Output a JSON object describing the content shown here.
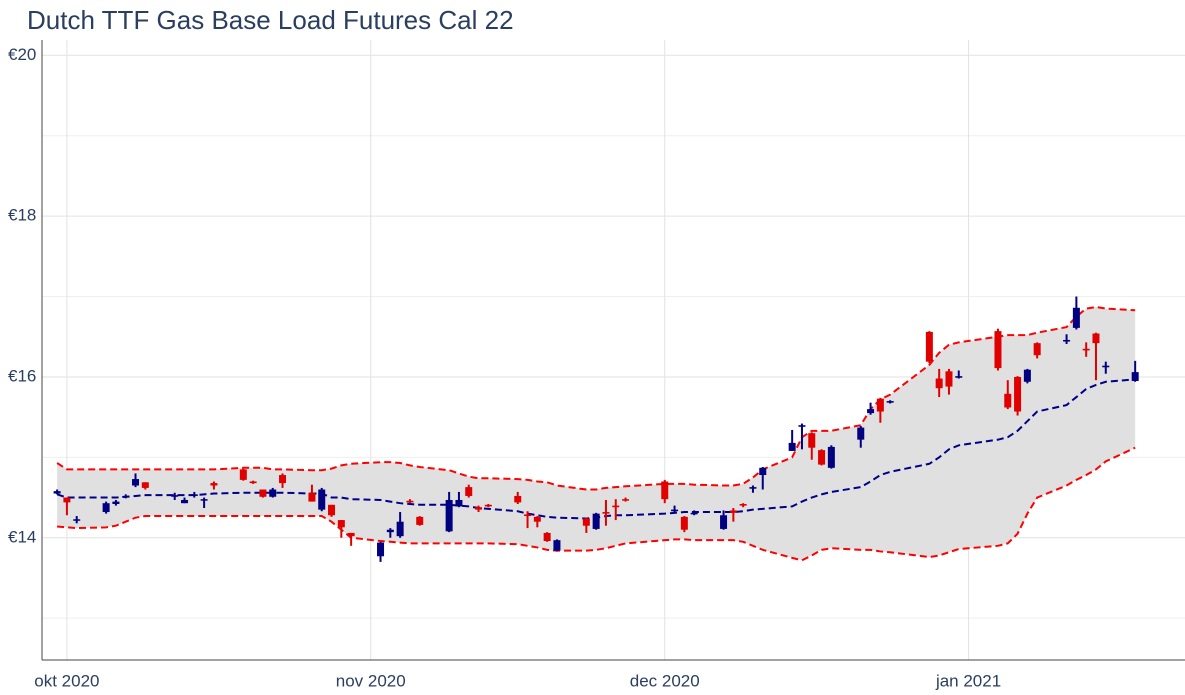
{
  "chart_data": {
    "type": "candlestick",
    "title": "Dutch TTF Gas Base Load Futures Cal 22",
    "x": [
      "2020-09-30",
      "2020-10-01",
      "2020-10-02",
      "2020-10-05",
      "2020-10-06",
      "2020-10-07",
      "2020-10-08",
      "2020-10-09",
      "2020-10-12",
      "2020-10-13",
      "2020-10-14",
      "2020-10-15",
      "2020-10-16",
      "2020-10-19",
      "2020-10-20",
      "2020-10-21",
      "2020-10-22",
      "2020-10-23",
      "2020-10-26",
      "2020-10-27",
      "2020-10-28",
      "2020-10-29",
      "2020-10-30",
      "2020-11-02",
      "2020-11-03",
      "2020-11-04",
      "2020-11-05",
      "2020-11-06",
      "2020-11-09",
      "2020-11-10",
      "2020-11-11",
      "2020-11-12",
      "2020-11-13",
      "2020-11-16",
      "2020-11-17",
      "2020-11-18",
      "2020-11-19",
      "2020-11-20",
      "2020-11-23",
      "2020-11-24",
      "2020-11-25",
      "2020-11-26",
      "2020-11-27",
      "2020-12-01",
      "2020-12-02",
      "2020-12-03",
      "2020-12-04",
      "2020-12-07",
      "2020-12-08",
      "2020-12-09",
      "2020-12-10",
      "2020-12-11",
      "2020-12-14",
      "2020-12-15",
      "2020-12-16",
      "2020-12-17",
      "2020-12-18",
      "2020-12-21",
      "2020-12-22",
      "2020-12-23",
      "2020-12-24",
      "2020-12-28",
      "2020-12-29",
      "2020-12-30",
      "2020-12-31",
      "2021-01-04",
      "2021-01-05",
      "2021-01-06",
      "2021-01-07",
      "2021-01-08",
      "2021-01-11",
      "2021-01-12",
      "2021-01-13",
      "2021-01-14",
      "2021-01-15",
      "2021-01-18"
    ],
    "open": [
      14.55,
      14.5,
      14.22,
      14.32,
      14.42,
      14.5,
      14.65,
      14.69,
      14.51,
      14.43,
      14.52,
      14.47,
      14.68,
      14.85,
      14.7,
      14.6,
      14.51,
      14.78,
      14.56,
      14.35,
      14.41,
      14.22,
      14.06,
      13.77,
      14.07,
      14.02,
      14.46,
      14.26,
      14.08,
      14.39,
      14.63,
      14.38,
      14.41,
      14.52,
      14.29,
      14.26,
      14.06,
      13.84,
      14.24,
      14.11,
      14.32,
      14.4,
      14.48,
      14.7,
      14.33,
      14.26,
      14.3,
      14.11,
      14.34,
      14.42,
      14.61,
      14.78,
      15.08,
      15.38,
      15.3,
      15.09,
      14.87,
      15.22,
      15.55,
      15.73,
      15.68,
      16.56,
      15.98,
      16.07,
      15.99,
      16.57,
      15.79,
      16.0,
      15.94,
      16.42,
      16.44,
      16.61,
      16.35,
      16.54,
      16.12,
      15.95
    ],
    "high": [
      14.6,
      14.5,
      14.27,
      14.45,
      14.47,
      14.54,
      14.8,
      14.69,
      14.56,
      14.5,
      14.57,
      14.5,
      14.7,
      14.86,
      14.71,
      14.6,
      14.62,
      14.8,
      14.66,
      14.62,
      14.41,
      14.22,
      14.06,
      13.95,
      14.12,
      14.32,
      14.48,
      14.27,
      14.57,
      14.57,
      14.66,
      14.4,
      14.42,
      14.57,
      14.33,
      14.27,
      14.07,
      13.98,
      14.25,
      14.31,
      14.47,
      14.48,
      14.5,
      14.72,
      14.4,
      14.27,
      14.34,
      14.34,
      14.37,
      14.43,
      14.65,
      14.88,
      15.34,
      15.42,
      15.31,
      15.1,
      15.15,
      15.39,
      15.68,
      15.74,
      15.71,
      16.57,
      16.1,
      16.1,
      16.08,
      16.6,
      15.96,
      16.01,
      16.1,
      16.43,
      16.53,
      17.0,
      16.43,
      16.55,
      16.19,
      16.2
    ],
    "low": [
      14.54,
      14.28,
      14.18,
      14.3,
      14.4,
      14.49,
      14.63,
      14.6,
      14.47,
      14.43,
      14.5,
      14.37,
      14.6,
      14.71,
      14.67,
      14.5,
      14.5,
      14.62,
      14.45,
      14.33,
      14.26,
      14.0,
      13.9,
      13.7,
      14.0,
      14.0,
      14.43,
      14.15,
      14.07,
      14.38,
      14.5,
      14.32,
      14.38,
      14.42,
      14.12,
      14.13,
      13.95,
      13.83,
      14.06,
      14.1,
      14.15,
      14.22,
      14.45,
      14.43,
      14.32,
      14.07,
      14.28,
      14.1,
      14.2,
      14.38,
      14.56,
      14.6,
      15.08,
      15.1,
      14.97,
      14.9,
      14.86,
      15.12,
      15.53,
      15.43,
      15.67,
      16.17,
      15.75,
      15.78,
      15.98,
      16.08,
      15.6,
      15.52,
      15.92,
      16.23,
      16.41,
      16.59,
      16.25,
      15.96,
      16.04,
      15.94
    ],
    "close": [
      14.58,
      14.44,
      14.23,
      14.43,
      14.45,
      14.52,
      14.73,
      14.62,
      14.53,
      14.47,
      14.54,
      14.48,
      14.65,
      14.72,
      14.68,
      14.51,
      14.6,
      14.68,
      14.45,
      14.6,
      14.28,
      14.13,
      14.02,
      13.94,
      14.1,
      14.2,
      14.44,
      14.16,
      14.47,
      14.47,
      14.52,
      14.35,
      14.39,
      14.44,
      14.27,
      14.2,
      13.96,
      13.97,
      14.15,
      14.3,
      14.3,
      14.38,
      14.47,
      14.48,
      14.35,
      14.1,
      14.31,
      14.28,
      14.31,
      14.4,
      14.63,
      14.87,
      15.18,
      15.4,
      15.12,
      14.91,
      15.13,
      15.37,
      15.6,
      15.57,
      15.7,
      16.19,
      15.86,
      15.88,
      16.01,
      16.11,
      15.62,
      15.57,
      16.09,
      16.27,
      16.46,
      16.86,
      16.33,
      16.42,
      16.14,
      16.06
    ],
    "increasing_color": "#000080",
    "decreasing_color": "#e00000",
    "bands": {
      "upper": [
        14.93,
        14.85,
        14.85,
        14.85,
        14.85,
        14.85,
        14.85,
        14.85,
        14.85,
        14.85,
        14.85,
        14.85,
        14.85,
        14.87,
        14.87,
        14.87,
        14.85,
        14.85,
        14.84,
        14.84,
        14.86,
        14.9,
        14.92,
        14.94,
        14.94,
        14.93,
        14.9,
        14.88,
        14.84,
        14.8,
        14.76,
        14.74,
        14.74,
        14.73,
        14.72,
        14.7,
        14.69,
        14.65,
        14.6,
        14.6,
        14.62,
        14.63,
        14.64,
        14.67,
        14.67,
        14.67,
        14.66,
        14.65,
        14.65,
        14.67,
        14.75,
        14.85,
        15.0,
        15.25,
        15.33,
        15.33,
        15.33,
        15.4,
        15.6,
        15.72,
        15.78,
        16.15,
        16.3,
        16.4,
        16.43,
        16.5,
        16.52,
        16.52,
        16.52,
        16.55,
        16.62,
        16.75,
        16.85,
        16.87,
        16.85,
        16.83
      ],
      "middle": [
        14.54,
        14.5,
        14.5,
        14.5,
        14.5,
        14.51,
        14.52,
        14.53,
        14.53,
        14.53,
        14.53,
        14.54,
        14.55,
        14.56,
        14.56,
        14.56,
        14.56,
        14.56,
        14.55,
        14.55,
        14.5,
        14.5,
        14.48,
        14.47,
        14.45,
        14.43,
        14.42,
        14.41,
        14.41,
        14.4,
        14.39,
        14.37,
        14.36,
        14.33,
        14.3,
        14.28,
        14.26,
        14.25,
        14.24,
        14.25,
        14.27,
        14.28,
        14.28,
        14.3,
        14.31,
        14.32,
        14.32,
        14.32,
        14.32,
        14.33,
        14.35,
        14.36,
        14.39,
        14.45,
        14.5,
        14.54,
        14.57,
        14.63,
        14.7,
        14.78,
        14.82,
        14.92,
        15.0,
        15.1,
        15.15,
        15.22,
        15.25,
        15.33,
        15.45,
        15.57,
        15.65,
        15.75,
        15.85,
        15.9,
        15.94,
        15.97
      ],
      "lower": [
        14.14,
        14.13,
        14.12,
        14.13,
        14.15,
        14.2,
        14.25,
        14.27,
        14.27,
        14.27,
        14.27,
        14.27,
        14.27,
        14.27,
        14.27,
        14.27,
        14.27,
        14.27,
        14.27,
        14.27,
        14.2,
        14.1,
        14.0,
        13.96,
        13.95,
        13.94,
        13.93,
        13.93,
        13.93,
        13.93,
        13.93,
        13.93,
        13.93,
        13.92,
        13.9,
        13.88,
        13.85,
        13.84,
        13.84,
        13.85,
        13.87,
        13.9,
        13.93,
        13.97,
        13.98,
        13.98,
        13.97,
        13.97,
        13.97,
        13.95,
        13.9,
        13.85,
        13.75,
        13.72,
        13.78,
        13.85,
        13.87,
        13.85,
        13.85,
        13.83,
        13.82,
        13.76,
        13.78,
        13.82,
        13.86,
        13.9,
        13.93,
        14.05,
        14.3,
        14.5,
        14.65,
        14.72,
        14.78,
        14.85,
        14.95,
        15.12
      ],
      "band_color": "#ff0000",
      "middle_color": "#00008b",
      "fill_color": "#e0e0e0"
    },
    "xlim": [
      "2020-09-28T11:00:00Z",
      "2021-01-23T02:00:00Z"
    ],
    "xticks": [
      {
        "value": "2020-10-01",
        "label": "okt 2020"
      },
      {
        "value": "2020-11-01",
        "label": "nov 2020"
      },
      {
        "value": "2020-12-01",
        "label": "dec 2020"
      },
      {
        "value": "2021-01-01",
        "label": "jan 2021"
      }
    ],
    "ylim": [
      12.48,
      20.19
    ],
    "yticks": [
      {
        "value": 14,
        "label": "€14"
      },
      {
        "value": 16,
        "label": "€16"
      },
      {
        "value": 18,
        "label": "€18"
      },
      {
        "value": 20,
        "label": "€20"
      }
    ],
    "minor_yticks": [
      13,
      15,
      17,
      19
    ],
    "grid": true
  }
}
